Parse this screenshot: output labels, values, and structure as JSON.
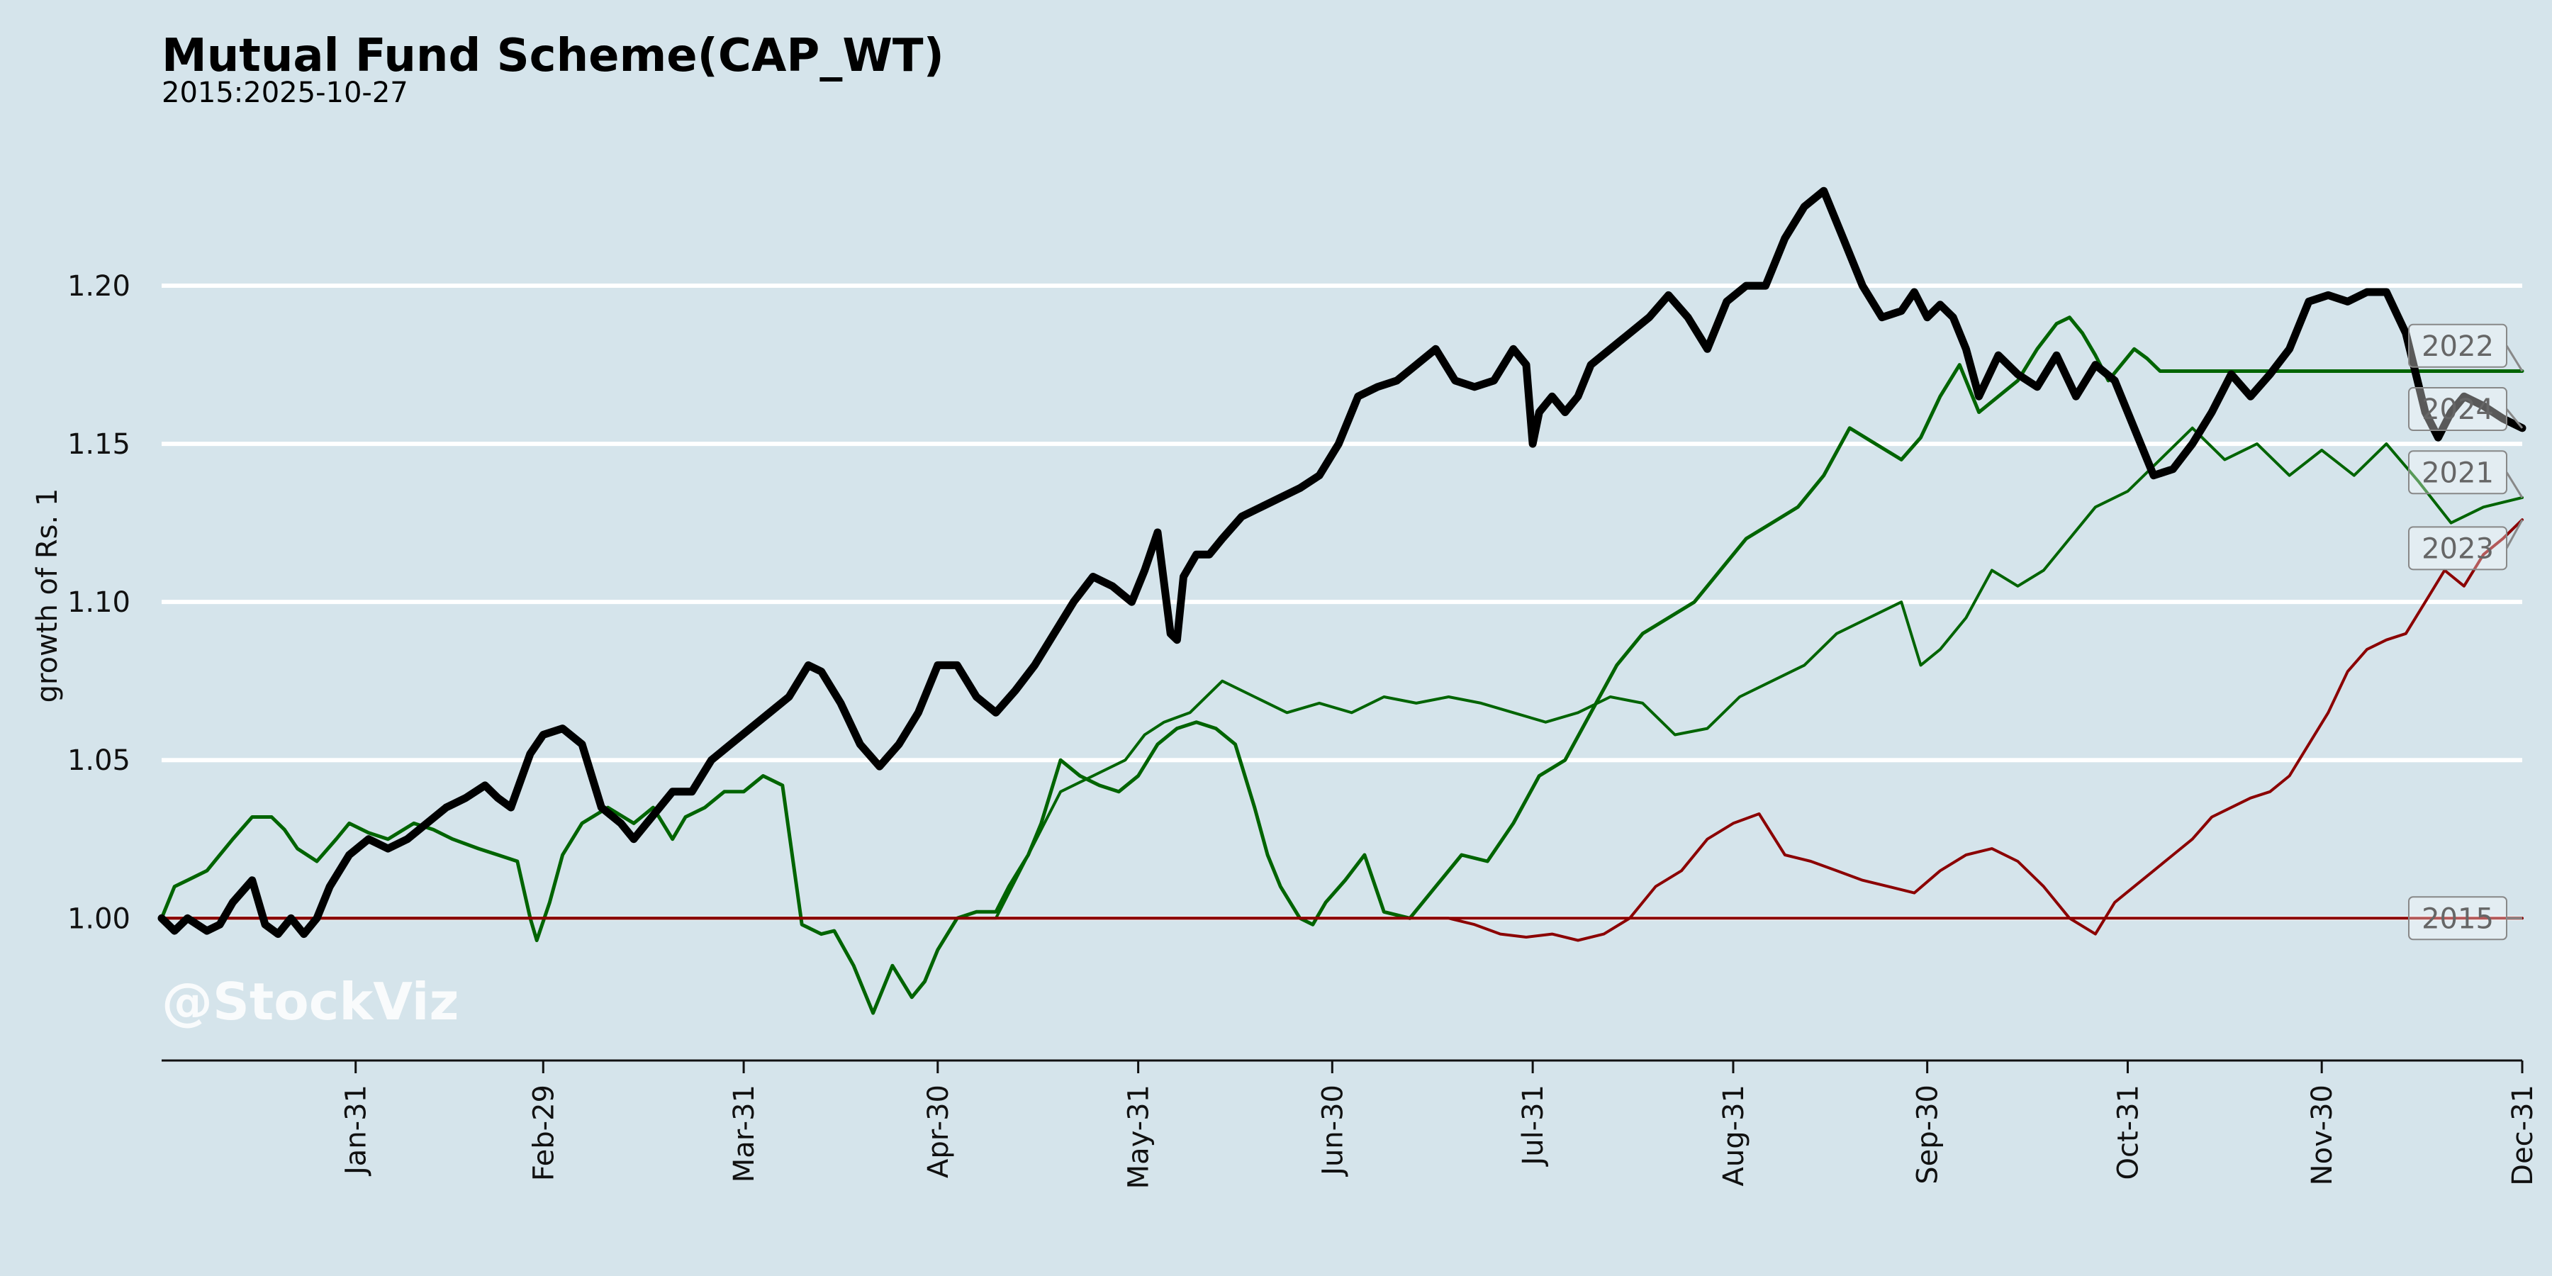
{
  "chart_data": {
    "type": "line",
    "title": "Mutual Fund Scheme(CAP_WT)",
    "subtitle": "2015:2025-10-27",
    "ylabel": "growth of Rs. 1",
    "xlabel": "",
    "ylim": [
      0.955,
      1.25
    ],
    "yticks": [
      1.0,
      1.05,
      1.1,
      1.15,
      1.2
    ],
    "ytick_labels": [
      "1.00",
      "1.05",
      "1.10",
      "1.15",
      "1.20"
    ],
    "xlim": [
      1,
      366
    ],
    "xticks": [
      31,
      60,
      91,
      121,
      152,
      182,
      213,
      244,
      274,
      305,
      335,
      366
    ],
    "xtick_labels": [
      "Jan-31",
      "Feb-29",
      "Mar-31",
      "Apr-30",
      "May-31",
      "Jun-30",
      "Jul-31",
      "Aug-31",
      "Sep-30",
      "Oct-31",
      "Nov-30",
      "Dec-31"
    ],
    "grid": "horizontal",
    "watermark": "@StockViz",
    "series": [
      {
        "name": "2015",
        "color": "#8b0000",
        "width": 4,
        "x": [
          1,
          366
        ],
        "y": [
          1.0,
          1.0
        ]
      },
      {
        "name": "2022",
        "color": "#006400",
        "width": 5,
        "x": [
          1,
          3,
          5,
          8,
          10,
          12,
          15,
          18,
          20,
          22,
          25,
          28,
          30,
          33,
          36,
          40,
          43,
          46,
          50,
          53,
          56,
          58,
          59,
          61,
          63,
          66,
          70,
          74,
          77,
          80,
          82,
          85,
          88,
          91,
          94,
          97,
          100,
          103,
          105,
          108,
          111,
          114,
          117,
          119,
          121,
          124,
          127,
          130,
          132,
          135,
          137,
          140,
          143,
          146,
          149,
          152,
          155,
          158,
          161,
          164,
          167,
          170,
          172,
          174,
          177,
          179,
          181,
          184,
          187,
          190,
          194,
          198,
          202,
          206,
          210,
          214,
          218,
          222,
          226,
          230,
          234,
          238,
          242,
          246,
          250,
          254,
          258,
          262,
          266,
          270,
          273,
          276,
          279,
          282,
          285,
          288,
          291,
          294,
          296,
          298,
          300,
          302,
          304,
          306,
          308,
          310,
          366
        ],
        "y": [
          1.0,
          1.01,
          1.012,
          1.015,
          1.02,
          1.025,
          1.032,
          1.032,
          1.028,
          1.022,
          1.018,
          1.025,
          1.03,
          1.027,
          1.025,
          1.03,
          1.028,
          1.025,
          1.022,
          1.02,
          1.018,
          1.0,
          0.993,
          1.005,
          1.02,
          1.03,
          1.035,
          1.03,
          1.035,
          1.025,
          1.032,
          1.035,
          1.04,
          1.04,
          1.045,
          1.042,
          0.998,
          0.995,
          0.996,
          0.985,
          0.97,
          0.985,
          0.975,
          0.98,
          0.99,
          1.0,
          1.002,
          1.002,
          1.01,
          1.02,
          1.03,
          1.05,
          1.045,
          1.042,
          1.04,
          1.045,
          1.055,
          1.06,
          1.062,
          1.06,
          1.055,
          1.035,
          1.02,
          1.01,
          1.0,
          0.998,
          1.005,
          1.012,
          1.02,
          1.002,
          1.0,
          1.01,
          1.02,
          1.018,
          1.03,
          1.045,
          1.05,
          1.065,
          1.08,
          1.09,
          1.095,
          1.1,
          1.11,
          1.12,
          1.125,
          1.13,
          1.14,
          1.155,
          1.15,
          1.145,
          1.152,
          1.165,
          1.175,
          1.16,
          1.165,
          1.17,
          1.18,
          1.188,
          1.19,
          1.185,
          1.178,
          1.17,
          1.175,
          1.18,
          1.177,
          1.173,
          1.173
        ]
      },
      {
        "name": "2024",
        "color": "#000000",
        "width": 11,
        "x": [
          1,
          3,
          5,
          8,
          10,
          12,
          15,
          17,
          19,
          21,
          23,
          25,
          27,
          30,
          33,
          36,
          39,
          42,
          45,
          48,
          51,
          53,
          55,
          58,
          60,
          63,
          66,
          69,
          72,
          74,
          76,
          78,
          80,
          83,
          86,
          89,
          92,
          95,
          98,
          101,
          103,
          106,
          109,
          112,
          115,
          118,
          121,
          124,
          127,
          130,
          133,
          136,
          139,
          142,
          145,
          148,
          151,
          153,
          155,
          157,
          158,
          159,
          161,
          163,
          165,
          168,
          171,
          174,
          177,
          180,
          183,
          186,
          189,
          192,
          195,
          198,
          201,
          204,
          207,
          210,
          212,
          213,
          214,
          216,
          218,
          220,
          222,
          225,
          228,
          231,
          234,
          237,
          240,
          243,
          246,
          249,
          252,
          255,
          258,
          261,
          264,
          267,
          270,
          272,
          274,
          276,
          278,
          280,
          282,
          285,
          288,
          291,
          294,
          297,
          300,
          303,
          306,
          309,
          312,
          315,
          318,
          321,
          324,
          327,
          330,
          333,
          336,
          339,
          342,
          345,
          348,
          351,
          353,
          355,
          357,
          360,
          363,
          366
        ],
        "y": [
          1.0,
          0.996,
          1.0,
          0.996,
          0.998,
          1.005,
          1.012,
          0.998,
          0.995,
          1.0,
          0.995,
          1.0,
          1.01,
          1.02,
          1.025,
          1.022,
          1.025,
          1.03,
          1.035,
          1.038,
          1.042,
          1.038,
          1.035,
          1.052,
          1.058,
          1.06,
          1.055,
          1.035,
          1.03,
          1.025,
          1.03,
          1.035,
          1.04,
          1.04,
          1.05,
          1.055,
          1.06,
          1.065,
          1.07,
          1.08,
          1.078,
          1.068,
          1.055,
          1.048,
          1.055,
          1.065,
          1.08,
          1.08,
          1.07,
          1.065,
          1.072,
          1.08,
          1.09,
          1.1,
          1.108,
          1.105,
          1.1,
          1.11,
          1.122,
          1.09,
          1.088,
          1.108,
          1.115,
          1.115,
          1.12,
          1.127,
          1.13,
          1.133,
          1.136,
          1.14,
          1.15,
          1.165,
          1.168,
          1.17,
          1.175,
          1.18,
          1.17,
          1.168,
          1.17,
          1.18,
          1.175,
          1.15,
          1.16,
          1.165,
          1.16,
          1.165,
          1.175,
          1.18,
          1.185,
          1.19,
          1.197,
          1.19,
          1.18,
          1.195,
          1.2,
          1.2,
          1.215,
          1.225,
          1.23,
          1.215,
          1.2,
          1.19,
          1.192,
          1.198,
          1.19,
          1.194,
          1.19,
          1.18,
          1.165,
          1.178,
          1.172,
          1.168,
          1.178,
          1.165,
          1.175,
          1.17,
          1.155,
          1.14,
          1.142,
          1.15,
          1.16,
          1.172,
          1.165,
          1.172,
          1.18,
          1.195,
          1.197,
          1.195,
          1.198,
          1.198,
          1.185,
          1.16,
          1.152,
          1.16,
          1.165,
          1.162,
          1.158,
          1.155
        ]
      },
      {
        "name": "2021",
        "color": "#006400",
        "width": 4,
        "x": [
          1,
          8,
          15,
          22,
          30,
          40,
          50,
          60,
          70,
          80,
          85,
          90,
          95,
          100,
          105,
          110,
          115,
          120,
          125,
          130,
          135,
          140,
          145,
          150,
          153,
          156,
          160,
          165,
          170,
          175,
          180,
          185,
          190,
          195,
          200,
          205,
          210,
          215,
          220,
          225,
          230,
          235,
          240,
          245,
          250,
          255,
          260,
          265,
          270,
          273,
          276,
          280,
          284,
          288,
          292,
          296,
          300,
          305,
          310,
          315,
          320,
          325,
          330,
          335,
          340,
          345,
          350,
          355,
          360,
          366
        ],
        "y": [
          1.0,
          1.0,
          1.0,
          1.0,
          1.0,
          1.0,
          1.0,
          1.0,
          1.0,
          1.0,
          1.0,
          1.0,
          1.0,
          1.0,
          1.0,
          1.0,
          1.0,
          1.0,
          1.0,
          1.0,
          1.02,
          1.04,
          1.045,
          1.05,
          1.058,
          1.062,
          1.065,
          1.075,
          1.07,
          1.065,
          1.068,
          1.065,
          1.07,
          1.068,
          1.07,
          1.068,
          1.065,
          1.062,
          1.065,
          1.07,
          1.068,
          1.058,
          1.06,
          1.07,
          1.075,
          1.08,
          1.09,
          1.095,
          1.1,
          1.08,
          1.085,
          1.095,
          1.11,
          1.105,
          1.11,
          1.12,
          1.13,
          1.135,
          1.145,
          1.155,
          1.145,
          1.15,
          1.14,
          1.148,
          1.14,
          1.15,
          1.138,
          1.125,
          1.13,
          1.133
        ]
      },
      {
        "name": "2023",
        "color": "#8b0000",
        "width": 4,
        "x": [
          1,
          200,
          204,
          208,
          212,
          216,
          220,
          224,
          228,
          232,
          236,
          240,
          244,
          248,
          252,
          256,
          260,
          264,
          268,
          272,
          276,
          280,
          284,
          288,
          292,
          296,
          300,
          303,
          306,
          309,
          312,
          315,
          318,
          321,
          324,
          327,
          330,
          333,
          336,
          339,
          342,
          345,
          348,
          351,
          354,
          357,
          360,
          363,
          366
        ],
        "y": [
          1.0,
          1.0,
          0.998,
          0.995,
          0.994,
          0.995,
          0.993,
          0.995,
          1.0,
          1.01,
          1.015,
          1.025,
          1.03,
          1.033,
          1.02,
          1.018,
          1.015,
          1.012,
          1.01,
          1.008,
          1.015,
          1.02,
          1.022,
          1.018,
          1.01,
          1.0,
          0.995,
          1.005,
          1.01,
          1.015,
          1.02,
          1.025,
          1.032,
          1.035,
          1.038,
          1.04,
          1.045,
          1.055,
          1.065,
          1.078,
          1.085,
          1.088,
          1.09,
          1.1,
          1.11,
          1.105,
          1.115,
          1.12,
          1.126
        ]
      }
    ],
    "legend_labels": [
      {
        "text": "2022",
        "series": "2022",
        "y": 1.181
      },
      {
        "text": "2024",
        "series": "2024",
        "y": 1.161
      },
      {
        "text": "2021",
        "series": "2021",
        "y": 1.141
      },
      {
        "text": "2023",
        "series": "2023",
        "y": 1.117
      },
      {
        "text": "2015",
        "series": "2015",
        "y": 1.0
      }
    ]
  }
}
